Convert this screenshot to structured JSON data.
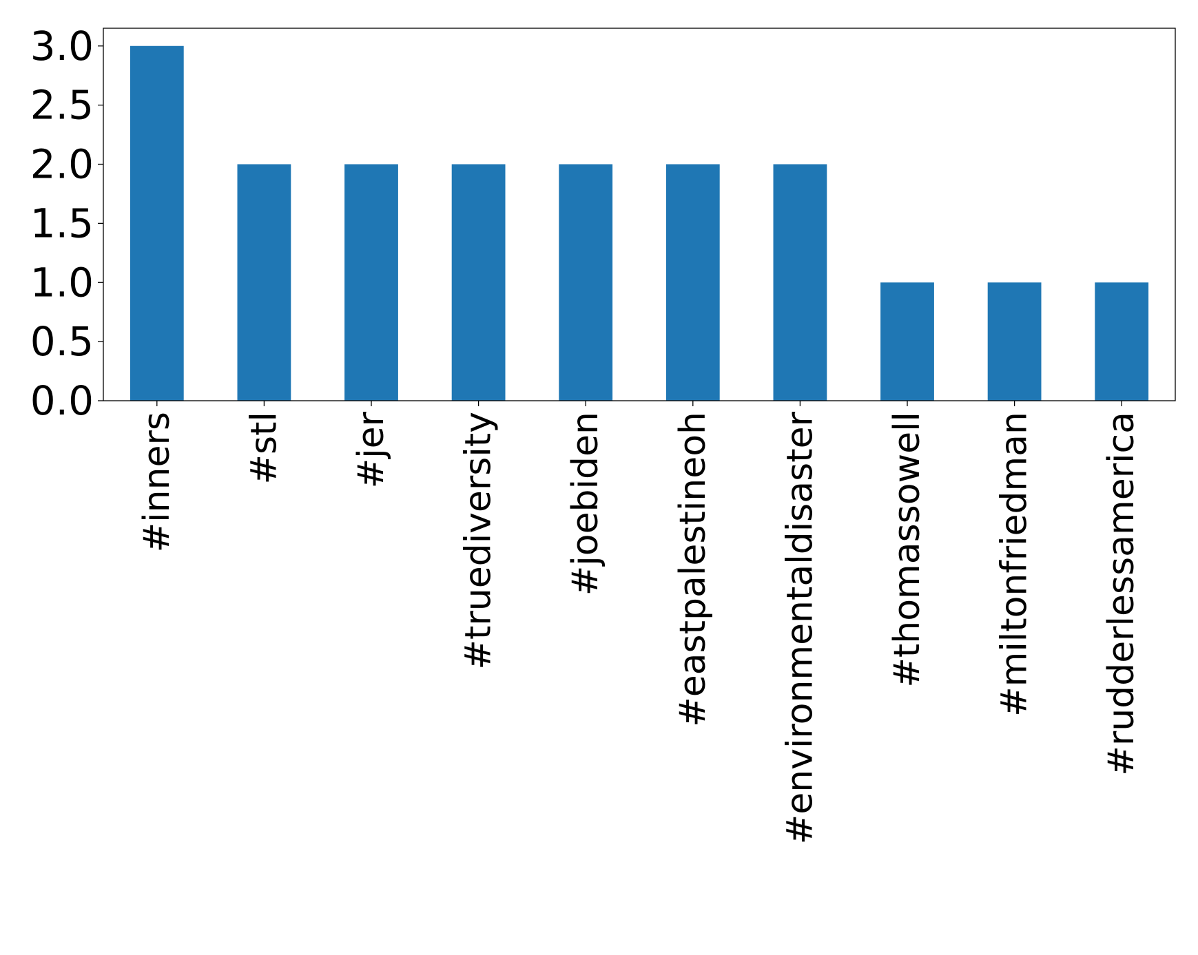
{
  "chart_data": {
    "type": "bar",
    "title": "",
    "xlabel": "",
    "ylabel": "",
    "categories": [
      "#inners",
      "#stl",
      "#jer",
      "#truediversity",
      "#joebiden",
      "#eastpalestineoh",
      "#environmentaldisaster",
      "#thomassowell",
      "#miltonfriedman",
      "#rudderlessamerica"
    ],
    "values": [
      3,
      2,
      2,
      2,
      2,
      2,
      2,
      1,
      1,
      1
    ],
    "ylim": [
      0,
      3.15
    ],
    "yticks": [
      0.0,
      0.5,
      1.0,
      1.5,
      2.0,
      2.5,
      3.0
    ],
    "ytick_labels": [
      "0.0",
      "0.5",
      "1.0",
      "1.5",
      "2.0",
      "2.5",
      "3.0"
    ],
    "grid": false,
    "legend": "none",
    "bar_color": "#1f77b4"
  }
}
